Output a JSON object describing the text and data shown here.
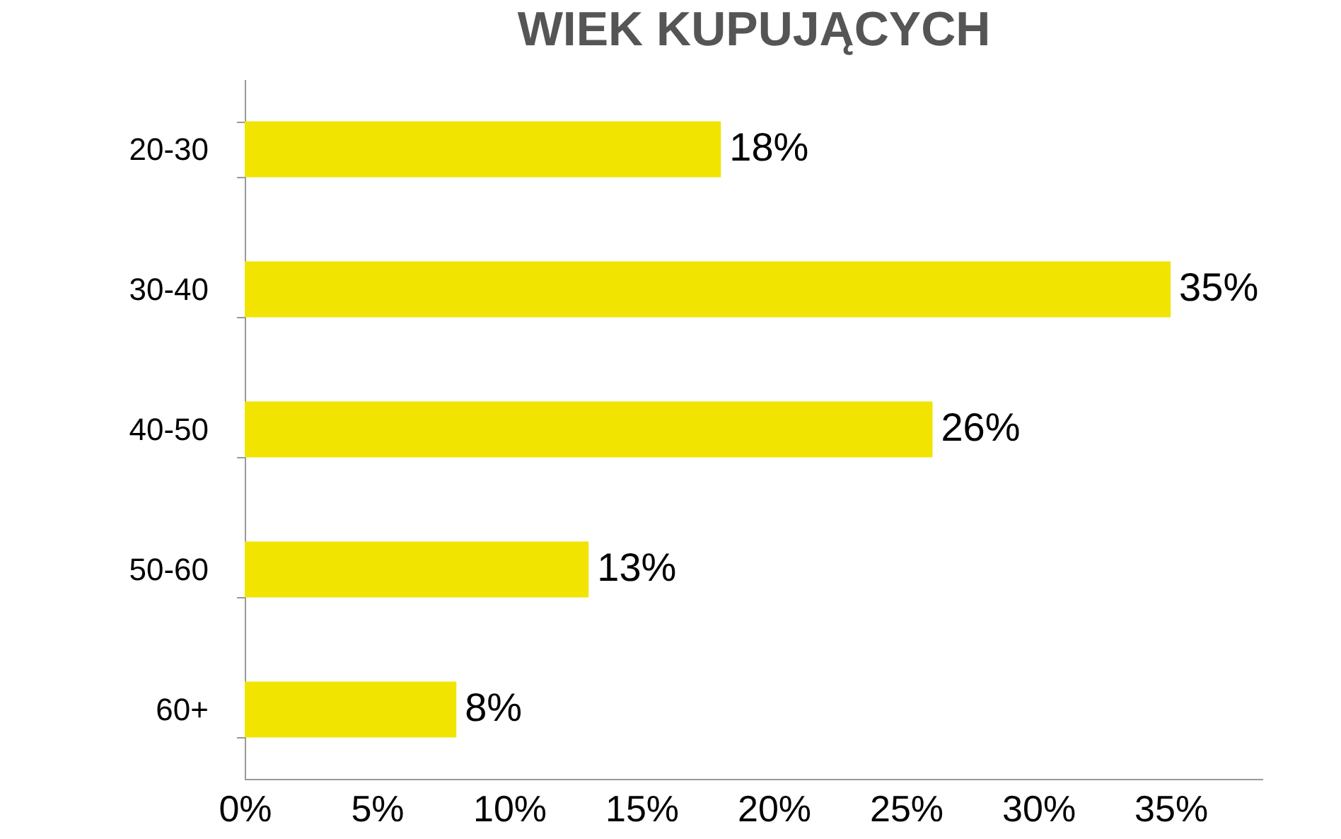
{
  "chart_data": {
    "type": "bar",
    "orientation": "horizontal",
    "title": "WIEK KUPUJĄCYCH",
    "categories": [
      "20-30",
      "30-40",
      "40-50",
      "50-60",
      "60+"
    ],
    "values": [
      18,
      35,
      26,
      13,
      8
    ],
    "value_labels": [
      "18%",
      "35%",
      "26%",
      "13%",
      "8%"
    ],
    "color": "#f0e400",
    "xlim": [
      0,
      38.5
    ],
    "xticks": [
      {
        "value": 0,
        "label": "0%"
      },
      {
        "value": 5,
        "label": "5%"
      },
      {
        "value": 10,
        "label": "10%"
      },
      {
        "value": 15,
        "label": "15%"
      },
      {
        "value": 20,
        "label": "20%"
      },
      {
        "value": 25,
        "label": "25%"
      },
      {
        "value": 30,
        "label": "30%"
      },
      {
        "value": 35,
        "label": "35%"
      }
    ],
    "grid": false
  }
}
